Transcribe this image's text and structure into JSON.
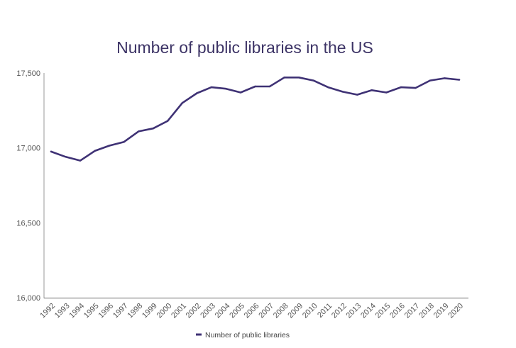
{
  "chart_data": {
    "type": "line",
    "title": "Number of public libraries in the US",
    "xlabel": "",
    "ylabel": "",
    "ylim": [
      16000,
      17500
    ],
    "yticks": [
      16000,
      16500,
      17000,
      17500
    ],
    "ytick_labels": [
      "16,000",
      "16,500",
      "17,000",
      "17,500"
    ],
    "grid": false,
    "legend_position": "bottom-center",
    "categories": [
      "1992",
      "1993",
      "1994",
      "1995",
      "1996",
      "1997",
      "1998",
      "1999",
      "2000",
      "2001",
      "2002",
      "2003",
      "2004",
      "2005",
      "2006",
      "2007",
      "2008",
      "2009",
      "2010",
      "2011",
      "2012",
      "2013",
      "2014",
      "2015",
      "2016",
      "2017",
      "2018",
      "2019",
      "2020"
    ],
    "series": [
      {
        "name": "Number of public libraries",
        "color": "#3f3275",
        "values": [
          16975,
          16940,
          16915,
          16980,
          17015,
          17040,
          17110,
          17130,
          17180,
          17300,
          17365,
          17405,
          17395,
          17370,
          17410,
          17410,
          17470,
          17470,
          17450,
          17405,
          17375,
          17355,
          17385,
          17370,
          17405,
          17400,
          17450,
          17465,
          17455
        ]
      }
    ]
  }
}
